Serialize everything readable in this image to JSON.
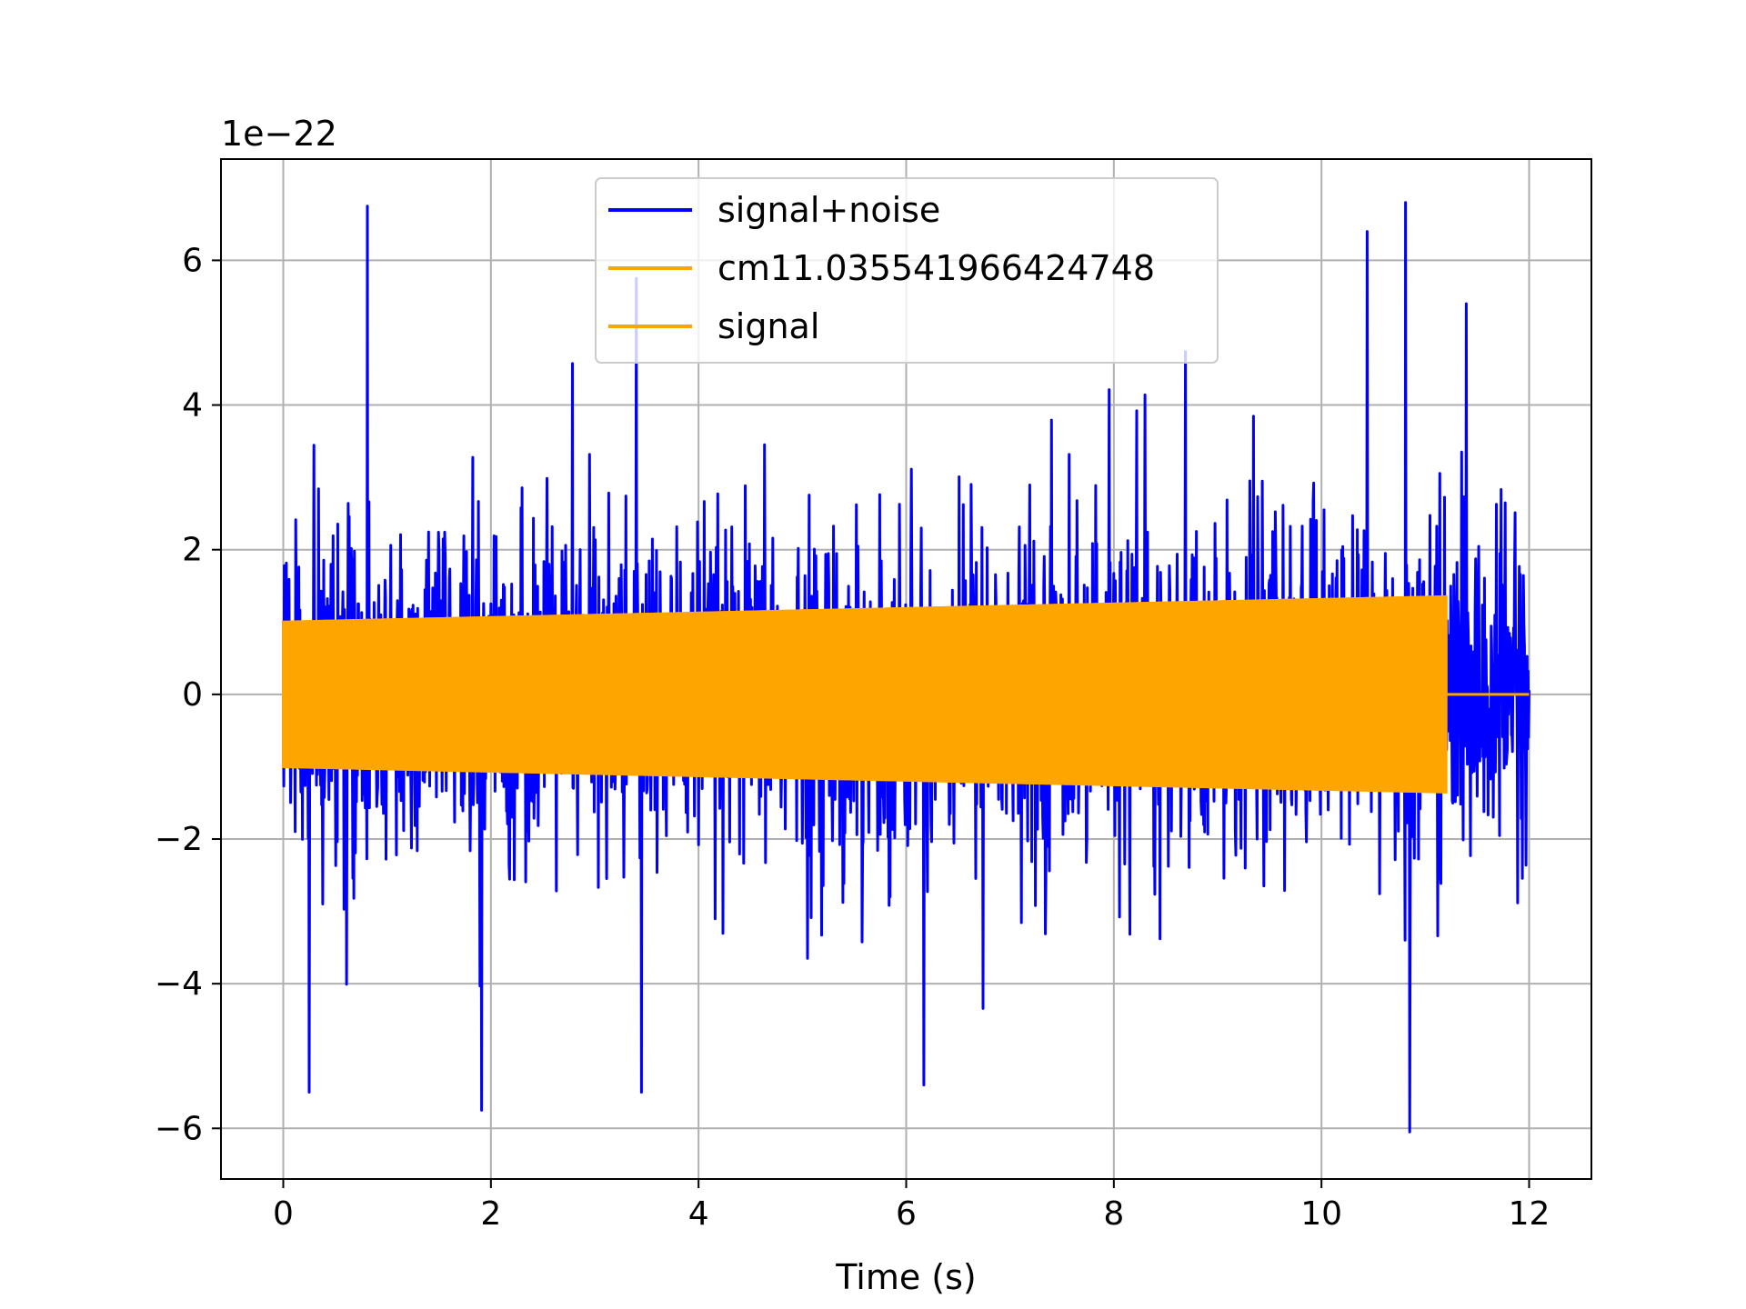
{
  "chart_data": {
    "type": "line",
    "title": "",
    "xlabel": "Time (s)",
    "ylabel": "",
    "y_offset_label": "1e−22",
    "y_scale_factor": 1e-22,
    "xlim": [
      -0.6,
      12.6
    ],
    "ylim": [
      -6.7,
      7.4
    ],
    "xticks": [
      0,
      2,
      4,
      6,
      8,
      10,
      12
    ],
    "yticks": [
      -6,
      -4,
      -2,
      0,
      2,
      4,
      6
    ],
    "ytick_labels": [
      "−6",
      "−4",
      "−2",
      "0",
      "2",
      "4",
      "6"
    ],
    "grid": true,
    "legend_position": "upper-center",
    "series": [
      {
        "name": "signal+noise",
        "color": "#0000ff",
        "t_range": [
          0,
          12
        ],
        "description_values": {
          "typical_band": [
            -2.2,
            2.2
          ],
          "peaks": [
            {
              "x": 0.81,
              "y": 6.75
            },
            {
              "x": 10.81,
              "y": 6.8
            },
            {
              "x": 10.44,
              "y": 6.4
            },
            {
              "x": 3.4,
              "y": 5.75
            },
            {
              "x": 1.91,
              "y": -5.75
            },
            {
              "x": 10.85,
              "y": -6.05
            },
            {
              "x": 0.25,
              "y": -5.5
            },
            {
              "x": 3.45,
              "y": -5.5
            }
          ]
        }
      },
      {
        "name": "cm11.035541966424748",
        "color": "#ffa500",
        "t_range": [
          0,
          11.2
        ],
        "amplitude_start": 1.0,
        "amplitude_end": 1.35
      },
      {
        "name": "signal",
        "color": "#ffa500",
        "t_range": [
          0,
          12
        ],
        "active_until": 11.2,
        "amplitude_start": 1.0,
        "amplitude_end": 1.35
      }
    ]
  }
}
